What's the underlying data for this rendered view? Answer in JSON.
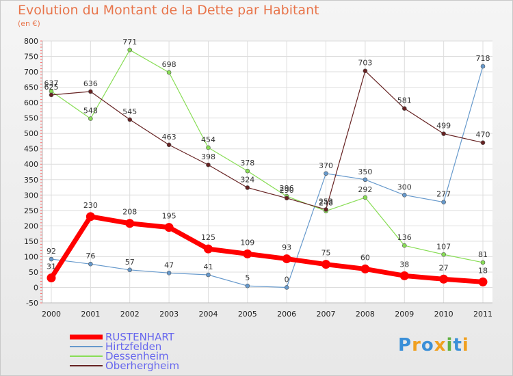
{
  "chart_data": {
    "type": "line",
    "title": "Evolution du Montant de la Dette par Habitant",
    "subtitle": "(en €)",
    "x": [
      "2000",
      "2001",
      "2002",
      "2003",
      "2004",
      "2005",
      "2006",
      "2007",
      "2008",
      "2009",
      "2010",
      "2011"
    ],
    "ylim": [
      -50,
      800
    ],
    "yticks": [
      -50,
      0,
      50,
      100,
      150,
      200,
      250,
      300,
      350,
      400,
      450,
      500,
      550,
      600,
      650,
      700,
      750,
      800
    ],
    "grid": true,
    "legend_position": "bottom-left",
    "series": [
      {
        "name": "RUSTENHART",
        "color": "#ff0000",
        "values": [
          31,
          230,
          208,
          195,
          125,
          109,
          93,
          75,
          60,
          38,
          27,
          18
        ]
      },
      {
        "name": "Hirtzfelden",
        "color": "#6699cc",
        "values": [
          92,
          76,
          57,
          47,
          41,
          5,
          0,
          370,
          350,
          300,
          277,
          718
        ]
      },
      {
        "name": "Dessenheim",
        "color": "#88dd55",
        "values": [
          637,
          548,
          771,
          698,
          454,
          378,
          296,
          248,
          292,
          136,
          107,
          81
        ]
      },
      {
        "name": "Oberhergheim",
        "color": "#662222",
        "values": [
          625,
          636,
          545,
          463,
          398,
          324,
          290,
          253,
          703,
          581,
          499,
          470
        ]
      }
    ]
  },
  "logo": {
    "text": "Proxiti"
  }
}
